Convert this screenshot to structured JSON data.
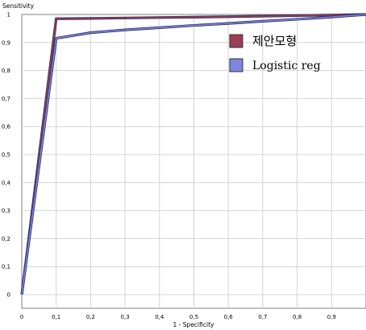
{
  "chart_data": {
    "type": "line",
    "xlabel": "1 - Specificity",
    "ylabel": "Sensitivity",
    "xlim": [
      0,
      1
    ],
    "ylim": [
      0,
      1
    ],
    "x_ticks": [
      "0",
      "0,1",
      "0,2",
      "0,3",
      "0,4",
      "0,5",
      "0,6",
      "0,7",
      "0,8",
      "0,9"
    ],
    "y_ticks": [
      "0",
      "0,1",
      "0,2",
      "0,3",
      "0,4",
      "0,5",
      "0,6",
      "0,7",
      "0,8",
      "0,9",
      "1"
    ],
    "grid": true,
    "legend_position": "top-right",
    "series": [
      {
        "name": "제안모형",
        "color": "#9a3d57",
        "x": [
          0,
          0.1,
          0.2,
          0.4,
          0.6,
          0.8,
          1.0
        ],
        "y": [
          0,
          0.985,
          0.986,
          0.989,
          0.992,
          0.996,
          1.0
        ]
      },
      {
        "name": "Logistic reg",
        "color": "#7e86e0",
        "x": [
          0,
          0.1,
          0.2,
          0.3,
          0.4,
          0.5,
          0.6,
          0.7,
          0.8,
          0.9,
          1.0
        ],
        "y": [
          0,
          0.915,
          0.935,
          0.945,
          0.953,
          0.961,
          0.968,
          0.976,
          0.983,
          0.991,
          1.0
        ]
      }
    ]
  }
}
